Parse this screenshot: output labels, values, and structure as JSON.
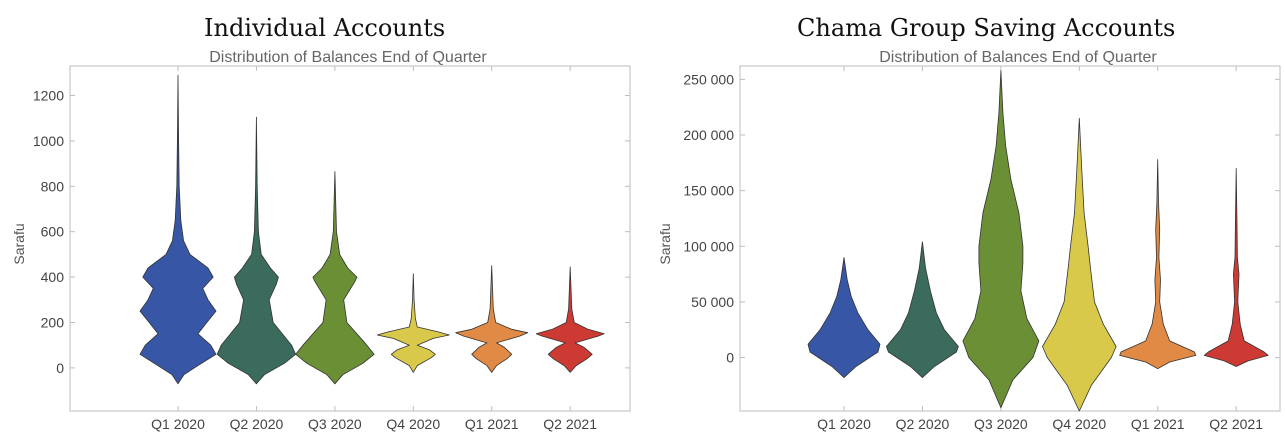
{
  "panels": [
    {
      "title": "Individual Accounts"
    },
    {
      "title": "Chama Group Saving Accounts"
    }
  ],
  "chart_data": [
    {
      "type": "violin",
      "title": "Individual Accounts",
      "subtitle": "Distribution of Balances End of Quarter",
      "xlabel": "",
      "ylabel": "Sarafu",
      "ylim": [
        -190,
        1330
      ],
      "yticks": [
        0,
        200,
        400,
        600,
        800,
        1000,
        1200
      ],
      "ytick_labels": [
        "0",
        "200",
        "400",
        "600",
        "800",
        "1000",
        "1200"
      ],
      "grid": false,
      "categories": [
        "Q1 2020",
        "Q2 2020",
        "Q3 2020",
        "Q4 2020",
        "Q1 2021",
        "Q2 2021"
      ],
      "series": [
        {
          "category": "Q1 2020",
          "color": "#3757a6",
          "min": -70,
          "max": 1290,
          "profile": [
            [
              -70,
              0
            ],
            [
              -30,
              0.15
            ],
            [
              10,
              0.5
            ],
            [
              60,
              0.95
            ],
            [
              100,
              0.82
            ],
            [
              150,
              0.5
            ],
            [
              200,
              0.72
            ],
            [
              250,
              0.95
            ],
            [
              300,
              0.75
            ],
            [
              350,
              0.62
            ],
            [
              400,
              0.88
            ],
            [
              440,
              0.75
            ],
            [
              500,
              0.3
            ],
            [
              560,
              0.14
            ],
            [
              650,
              0.07
            ],
            [
              800,
              0.03
            ],
            [
              1000,
              0.015
            ],
            [
              1290,
              0
            ]
          ]
        },
        {
          "category": "Q2 2020",
          "color": "#3a6b5d",
          "min": -70,
          "max": 1105,
          "profile": [
            [
              -70,
              0
            ],
            [
              -30,
              0.2
            ],
            [
              20,
              0.7
            ],
            [
              60,
              0.98
            ],
            [
              100,
              0.88
            ],
            [
              200,
              0.42
            ],
            [
              300,
              0.32
            ],
            [
              370,
              0.5
            ],
            [
              400,
              0.55
            ],
            [
              440,
              0.35
            ],
            [
              500,
              0.12
            ],
            [
              600,
              0.05
            ],
            [
              800,
              0.02
            ],
            [
              1105,
              0
            ]
          ]
        },
        {
          "category": "Q3 2020",
          "color": "#6b8f35",
          "min": -70,
          "max": 865,
          "profile": [
            [
              -70,
              0
            ],
            [
              -30,
              0.2
            ],
            [
              20,
              0.7
            ],
            [
              60,
              0.98
            ],
            [
              100,
              0.8
            ],
            [
              200,
              0.3
            ],
            [
              300,
              0.22
            ],
            [
              380,
              0.5
            ],
            [
              400,
              0.55
            ],
            [
              440,
              0.32
            ],
            [
              500,
              0.12
            ],
            [
              600,
              0.04
            ],
            [
              865,
              0
            ]
          ]
        },
        {
          "category": "Q4 2020",
          "color": "#d9c94a",
          "min": -20,
          "max": 415,
          "profile": [
            [
              -20,
              0
            ],
            [
              10,
              0.1
            ],
            [
              45,
              0.45
            ],
            [
              60,
              0.55
            ],
            [
              80,
              0.4
            ],
            [
              100,
              0.1
            ],
            [
              130,
              0.5
            ],
            [
              145,
              0.9
            ],
            [
              160,
              0.6
            ],
            [
              180,
              0.1
            ],
            [
              220,
              0.05
            ],
            [
              300,
              0.02
            ],
            [
              415,
              0
            ]
          ]
        },
        {
          "category": "Q1 2021",
          "color": "#e08a45",
          "min": -20,
          "max": 450,
          "profile": [
            [
              -20,
              0
            ],
            [
              10,
              0.12
            ],
            [
              40,
              0.38
            ],
            [
              60,
              0.5
            ],
            [
              90,
              0.32
            ],
            [
              110,
              0.12
            ],
            [
              140,
              0.7
            ],
            [
              155,
              0.9
            ],
            [
              170,
              0.5
            ],
            [
              200,
              0.1
            ],
            [
              260,
              0.04
            ],
            [
              450,
              0
            ]
          ]
        },
        {
          "category": "Q2 2021",
          "color": "#cd3a33",
          "min": -20,
          "max": 445,
          "profile": [
            [
              -20,
              0
            ],
            [
              10,
              0.15
            ],
            [
              40,
              0.42
            ],
            [
              60,
              0.55
            ],
            [
              90,
              0.35
            ],
            [
              110,
              0.12
            ],
            [
              140,
              0.7
            ],
            [
              150,
              0.85
            ],
            [
              170,
              0.45
            ],
            [
              200,
              0.1
            ],
            [
              260,
              0.04
            ],
            [
              445,
              0
            ]
          ]
        }
      ]
    },
    {
      "type": "violin",
      "title": "Chama Group Saving Accounts",
      "subtitle": "Distribution of Balances End of Quarter",
      "xlabel": "",
      "ylabel": "Sarafu",
      "ylim": [
        -48000,
        262000
      ],
      "yticks": [
        0,
        50000,
        100000,
        150000,
        200000,
        250000
      ],
      "ytick_labels": [
        "0",
        "50 000",
        "100 000",
        "150 000",
        "200 000",
        "250 000"
      ],
      "grid": false,
      "categories": [
        "Q1 2020",
        "Q2 2020",
        "Q3 2020",
        "Q4 2020",
        "Q1 2021",
        "Q2 2021"
      ],
      "series": [
        {
          "category": "Q1 2020",
          "color": "#3757a6",
          "min": -18000,
          "max": 90000,
          "profile": [
            [
              -18000,
              0
            ],
            [
              -8000,
              0.3
            ],
            [
              5000,
              0.85
            ],
            [
              12000,
              0.9
            ],
            [
              25000,
              0.6
            ],
            [
              40000,
              0.35
            ],
            [
              55000,
              0.18
            ],
            [
              70000,
              0.08
            ],
            [
              90000,
              0
            ]
          ]
        },
        {
          "category": "Q2 2020",
          "color": "#3a6b5d",
          "min": -18000,
          "max": 104000,
          "profile": [
            [
              -18000,
              0
            ],
            [
              -8000,
              0.3
            ],
            [
              5000,
              0.85
            ],
            [
              10000,
              0.9
            ],
            [
              25000,
              0.55
            ],
            [
              40000,
              0.35
            ],
            [
              60000,
              0.2
            ],
            [
              80000,
              0.08
            ],
            [
              104000,
              0
            ]
          ]
        },
        {
          "category": "Q3 2020",
          "color": "#6b8f35",
          "min": -45000,
          "max": 258000,
          "profile": [
            [
              -45000,
              0
            ],
            [
              -20000,
              0.3
            ],
            [
              0,
              0.8
            ],
            [
              15000,
              0.95
            ],
            [
              35000,
              0.65
            ],
            [
              60000,
              0.5
            ],
            [
              85000,
              0.55
            ],
            [
              100000,
              0.55
            ],
            [
              130000,
              0.45
            ],
            [
              160000,
              0.25
            ],
            [
              190000,
              0.12
            ],
            [
              220000,
              0.05
            ],
            [
              258000,
              0
            ]
          ]
        },
        {
          "category": "Q4 2020",
          "color": "#d9c94a",
          "min": -48000,
          "max": 215000,
          "profile": [
            [
              -48000,
              0
            ],
            [
              -25000,
              0.3
            ],
            [
              0,
              0.8
            ],
            [
              10000,
              0.92
            ],
            [
              30000,
              0.6
            ],
            [
              50000,
              0.38
            ],
            [
              80000,
              0.28
            ],
            [
              100000,
              0.22
            ],
            [
              130000,
              0.12
            ],
            [
              170000,
              0.06
            ],
            [
              215000,
              0
            ]
          ]
        },
        {
          "category": "Q1 2021",
          "color": "#e08a45",
          "min": -10000,
          "max": 178000,
          "profile": [
            [
              -10000,
              0
            ],
            [
              -4000,
              0.3
            ],
            [
              2000,
              0.95
            ],
            [
              5000,
              0.92
            ],
            [
              15000,
              0.3
            ],
            [
              30000,
              0.14
            ],
            [
              50000,
              0.05
            ],
            [
              70000,
              0.07
            ],
            [
              90000,
              0.03
            ],
            [
              115000,
              0.05
            ],
            [
              140000,
              0.02
            ],
            [
              178000,
              0
            ]
          ]
        },
        {
          "category": "Q2 2021",
          "color": "#cd3a33",
          "min": -8000,
          "max": 170000,
          "profile": [
            [
              -8000,
              0
            ],
            [
              -3000,
              0.3
            ],
            [
              2000,
              0.8
            ],
            [
              5000,
              0.7
            ],
            [
              15000,
              0.2
            ],
            [
              30000,
              0.1
            ],
            [
              50000,
              0.04
            ],
            [
              75000,
              0.07
            ],
            [
              90000,
              0.03
            ],
            [
              120000,
              0.02
            ],
            [
              170000,
              0
            ]
          ]
        }
      ]
    }
  ]
}
